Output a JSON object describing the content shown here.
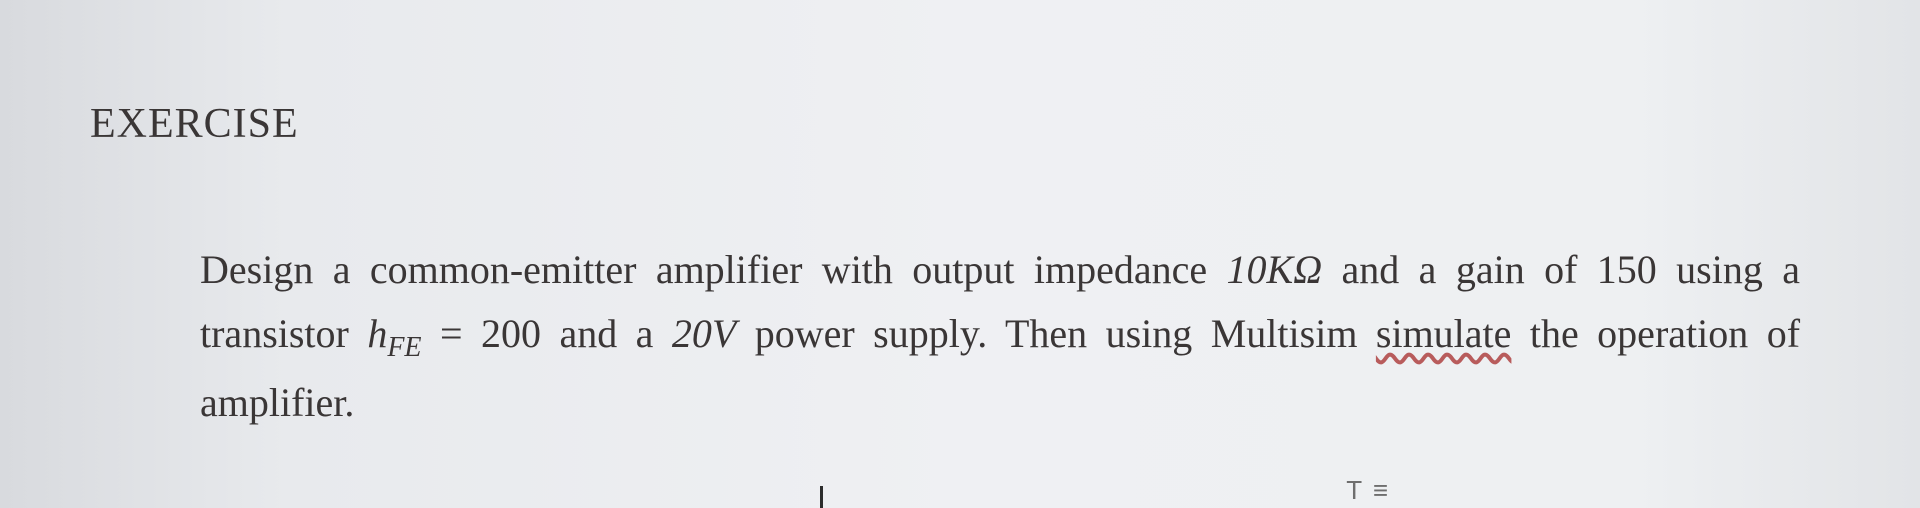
{
  "heading": "EXERCISE",
  "body": {
    "line1_a": "Design  a  common-emitter  amplifier  with  output  impedance  ",
    "impedance": "10KΩ",
    "line1_b": "  and  a  gain  of ",
    "gain": "150",
    "line2_a": " using  a  transistor  ",
    "hfe_var": "h",
    "hfe_sub": "FE",
    "hfe_eq": " = ",
    "hfe_val": "200",
    "line2_b": "  and  a  ",
    "supply": "20V",
    "line2_c": "  power  supply.  Then  using  Multisim ",
    "underlined": "simulate",
    "line3": " the operation of amplifier."
  },
  "marks": {
    "glyphs": "T ≡"
  },
  "colors": {
    "text": "#3a3636",
    "background": "#eff0f3",
    "wavy_underline": "#b85c5c"
  },
  "typography": {
    "family": "Times New Roman",
    "heading_size_pt": 32,
    "body_size_pt": 30
  }
}
